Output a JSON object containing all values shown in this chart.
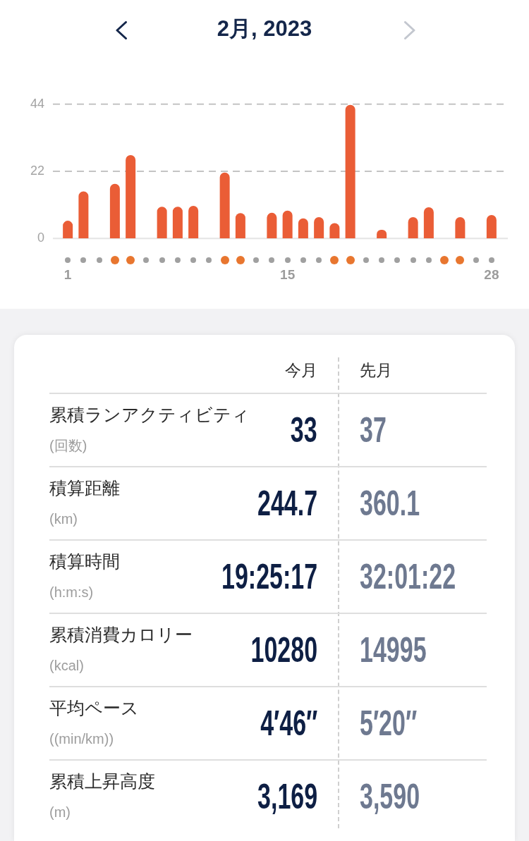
{
  "chart_data": [
    {
      "type": "bar",
      "title": "2月, 2023",
      "categories": [
        "1",
        null,
        null,
        null,
        null,
        null,
        null,
        null,
        null,
        null,
        null,
        null,
        null,
        null,
        "15",
        null,
        null,
        null,
        null,
        null,
        null,
        null,
        null,
        null,
        null,
        null,
        null,
        "28"
      ],
      "values": [
        5.8,
        15.4,
        null,
        17.9,
        27.3,
        null,
        10.4,
        10.4,
        10.7,
        null,
        21.6,
        8.3,
        null,
        8.4,
        9.1,
        6.6,
        7.0,
        5.0,
        43.8,
        null,
        2.8,
        null,
        7.0,
        10.2,
        null,
        7.0,
        null,
        7.7
      ],
      "color": "#ea5d36",
      "ylim": [
        0,
        44
      ],
      "yticks": [
        0,
        22,
        44
      ],
      "grid": "y"
    },
    {
      "type": "other",
      "annotations": [
        "今月",
        "先月",
        "累積ランアクティビティ",
        "(回数)",
        "33",
        "37",
        "積算距離",
        "(km)",
        "244.7",
        "360.1",
        "積算時間",
        "(h:m:s)",
        "19:25:17",
        "32:01:22",
        "累積消費カロリー",
        "(kcal)",
        "10280",
        "14995",
        "平均ペース",
        "((min/km))",
        "4′46″",
        "5′20″",
        "累積上昇高度",
        "(m)",
        "3,169",
        "3,590"
      ]
    }
  ]
}
